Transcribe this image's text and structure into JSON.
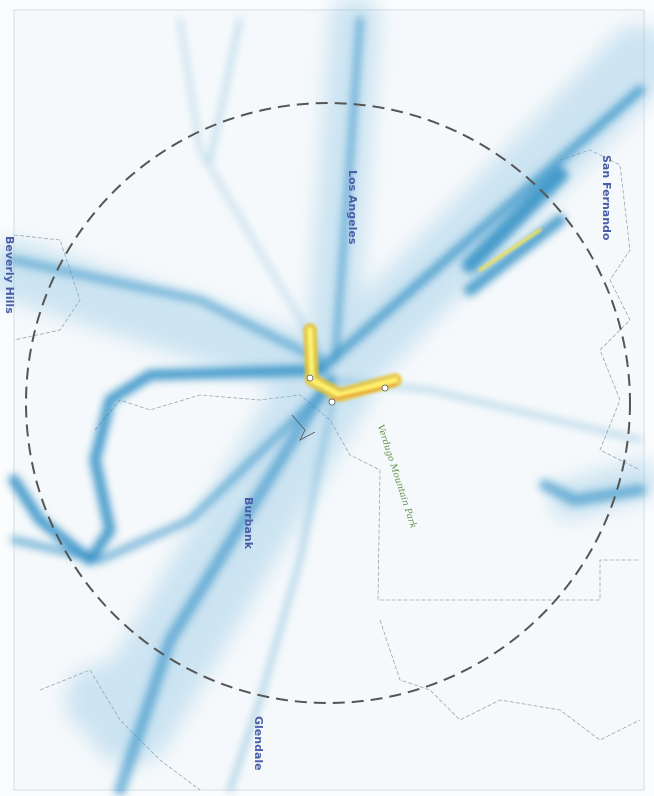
{
  "places": [
    {
      "label": "Los Angeles"
    },
    {
      "label": "San Fernando"
    },
    {
      "label": "Beverly Hills"
    },
    {
      "label": "Burbank"
    },
    {
      "label": "Glendale"
    },
    {
      "label": "Verdugo Mountain Park"
    }
  ]
}
